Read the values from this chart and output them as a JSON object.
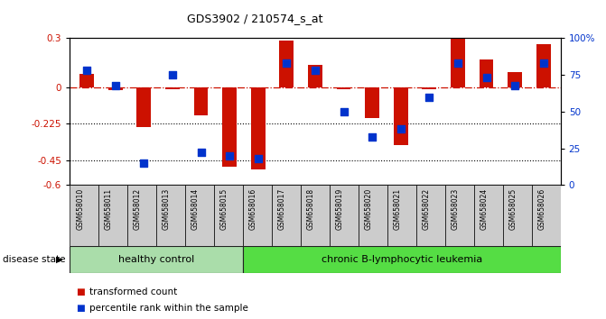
{
  "title": "GDS3902 / 210574_s_at",
  "samples": [
    "GSM658010",
    "GSM658011",
    "GSM658012",
    "GSM658013",
    "GSM658014",
    "GSM658015",
    "GSM658016",
    "GSM658017",
    "GSM658018",
    "GSM658019",
    "GSM658020",
    "GSM658021",
    "GSM658022",
    "GSM658023",
    "GSM658024",
    "GSM658025",
    "GSM658026"
  ],
  "red_values": [
    0.08,
    -0.02,
    -0.245,
    -0.012,
    -0.17,
    -0.49,
    -0.505,
    0.285,
    0.135,
    -0.015,
    -0.19,
    -0.355,
    -0.012,
    0.295,
    0.17,
    0.09,
    0.265
  ],
  "blue_values": [
    78,
    68,
    15,
    75,
    22,
    20,
    18,
    83,
    78,
    50,
    33,
    38,
    60,
    83,
    73,
    68,
    83
  ],
  "ylim_left": [
    -0.6,
    0.3
  ],
  "ylim_right": [
    0,
    100
  ],
  "yticks_left": [
    0.3,
    0.0,
    -0.225,
    -0.45,
    -0.6
  ],
  "ytick_labels_left": [
    "0.3",
    "0",
    "-0.225",
    "-0.45",
    "-0.6"
  ],
  "yticks_right": [
    100,
    75,
    50,
    25,
    0
  ],
  "ytick_labels_right": [
    "100%",
    "75",
    "50",
    "25",
    "0"
  ],
  "hlines": [
    -0.225,
    -0.45
  ],
  "zero_line": 0.0,
  "group1_count": 6,
  "group1_label": "healthy control",
  "group2_label": "chronic B-lymphocytic leukemia",
  "disease_state_label": "disease state",
  "legend1": "transformed count",
  "legend2": "percentile rank within the sample",
  "bar_color": "#CC1100",
  "dot_color": "#0033CC",
  "bg_color": "#FFFFFF",
  "plot_bg": "#FFFFFF",
  "group1_bg": "#AADDAA",
  "group2_bg": "#55DD44",
  "tick_bg": "#CCCCCC",
  "bar_width": 0.5
}
